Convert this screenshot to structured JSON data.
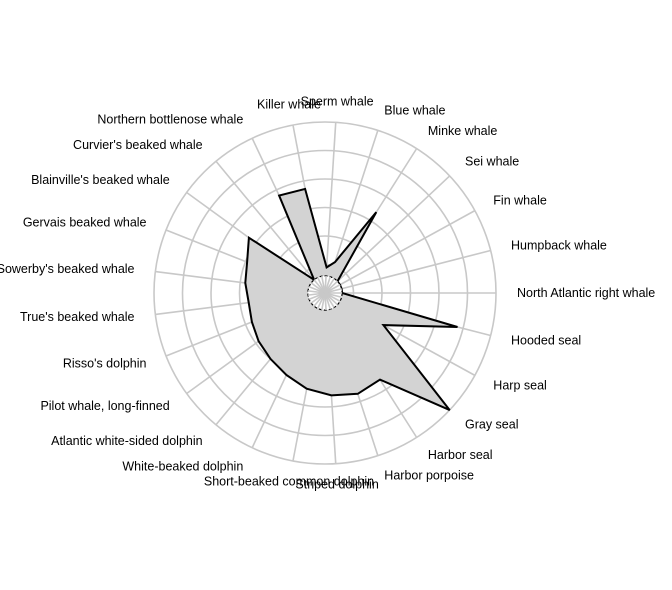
{
  "chart_data": {
    "type": "radar",
    "categories": [
      "North Atlantic right whale",
      "Humpback whale",
      "Fin whale",
      "Sei whale",
      "Minke whale",
      "Blue whale",
      "Sperm whale",
      "Killer whale",
      "Northern bottlenose whale",
      "Curvier's beaked whale",
      "Blainville's beaked whale",
      "Gervais beaked whale",
      "Sowerby's beaked whale",
      "True's beaked whale",
      "Risso's dolphin",
      "Pilot whale, long-finned",
      "Atlantic white-sided dolphin",
      "White-beaked dolphin",
      "Short-beaked common dolphin",
      "Striped dolphin",
      "Harbor porpoise",
      "Harbor seal",
      "Gray seal",
      "Harp seal",
      "Hooded seal"
    ],
    "series": [
      {
        "values": [
          0.1,
          0.1,
          0.1,
          0.1,
          0.56,
          0.19,
          0.15,
          0.62,
          0.63,
          0.1,
          0.55,
          0.49,
          0.47,
          0.45,
          0.46,
          0.48,
          0.5,
          0.53,
          0.57,
          0.6,
          0.62,
          0.6,
          1.0,
          0.39,
          0.8
        ]
      }
    ],
    "rlim": [
      0,
      1
    ],
    "ring_levels": 6,
    "inner_circle": 0.1,
    "grid": true,
    "legend": "none",
    "colors": {
      "fill": "#d3d3d3",
      "outline": "#000000",
      "grid": "#c8c8c8"
    }
  }
}
